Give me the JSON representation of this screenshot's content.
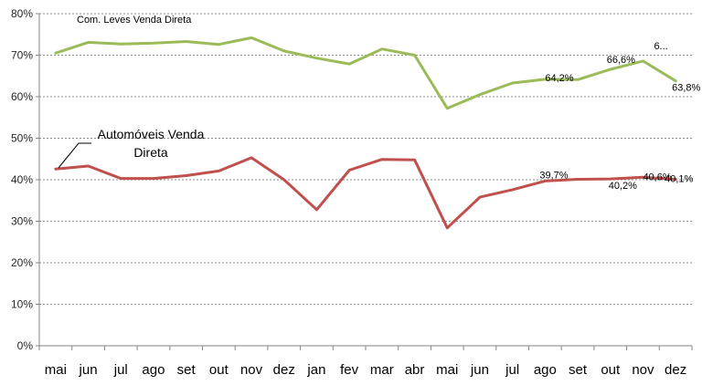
{
  "chart_data": {
    "type": "line",
    "title": "",
    "xlabel": "",
    "ylabel": "",
    "ylim": [
      0,
      80
    ],
    "y_tick_labels": [
      "0%",
      "10%",
      "20%",
      "30%",
      "40%",
      "50%",
      "60%",
      "70%",
      "80%"
    ],
    "grid": "horizontal dashed",
    "categories": [
      "mai",
      "jun",
      "jul",
      "ago",
      "set",
      "out",
      "nov",
      "dez",
      "jan",
      "fev",
      "mar",
      "abr",
      "mai",
      "jun",
      "jul",
      "ago",
      "set",
      "out",
      "nov",
      "dez"
    ],
    "series": [
      {
        "name": "Com. Leves Venda Direta",
        "color": "#9bbb59",
        "values": [
          70.5,
          73.1,
          72.7,
          72.9,
          73.3,
          72.6,
          74.2,
          71.0,
          69.3,
          67.9,
          71.5,
          70.0,
          57.2,
          60.5,
          63.3,
          64.2,
          64.1,
          66.6,
          68.6,
          63.8
        ]
      },
      {
        "name": "Automóveis Venda Direta",
        "color": "#c0504d",
        "values": [
          42.6,
          43.3,
          40.3,
          40.3,
          41.0,
          42.1,
          45.3,
          40.0,
          32.8,
          42.3,
          44.9,
          44.8,
          28.4,
          35.8,
          37.6,
          39.7,
          40.1,
          40.2,
          40.6,
          40.1
        ]
      }
    ],
    "data_labels": [
      {
        "series": 0,
        "index": 15,
        "text": "64,2%"
      },
      {
        "series": 0,
        "index": 17,
        "text": "66,6%"
      },
      {
        "series": 0,
        "index": 18,
        "text": "6..."
      },
      {
        "series": 0,
        "index": 19,
        "text": "63,8%"
      },
      {
        "series": 1,
        "index": 15,
        "text": "39,7%"
      },
      {
        "series": 1,
        "index": 17,
        "text": "40,2%"
      },
      {
        "series": 1,
        "index": 18,
        "text": "40,6%"
      },
      {
        "series": 1,
        "index": 19,
        "text": "40,1%"
      }
    ]
  }
}
